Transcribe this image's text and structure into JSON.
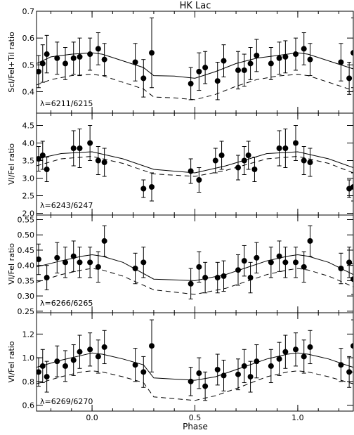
{
  "figure": {
    "title": "HK Lac",
    "xlabel": "Phase"
  },
  "chart_data": [
    {
      "type": "scatter",
      "ylabel": "ScI/FeI+TiI ratio",
      "annotation": "λ=6211/6215",
      "xlim": [
        -0.27,
        1.27
      ],
      "ylim": [
        0.32,
        0.7
      ],
      "yticks": [
        0.4,
        0.5,
        0.6,
        0.7
      ],
      "xticks": [
        0.0,
        0.5,
        1.0
      ],
      "observed": [
        {
          "x": -0.26,
          "y": 0.475,
          "err": 0.06
        },
        {
          "x": -0.24,
          "y": 0.505,
          "err": 0.07
        },
        {
          "x": -0.22,
          "y": 0.54,
          "err": 0.07
        },
        {
          "x": -0.17,
          "y": 0.525,
          "err": 0.06
        },
        {
          "x": -0.13,
          "y": 0.505,
          "err": 0.06
        },
        {
          "x": -0.09,
          "y": 0.525,
          "err": 0.06
        },
        {
          "x": -0.06,
          "y": 0.53,
          "err": 0.07
        },
        {
          "x": -0.01,
          "y": 0.54,
          "err": 0.06
        },
        {
          "x": 0.03,
          "y": 0.56,
          "err": 0.06
        },
        {
          "x": 0.06,
          "y": 0.52,
          "err": 0.06
        },
        {
          "x": 0.21,
          "y": 0.51,
          "err": 0.07
        },
        {
          "x": 0.25,
          "y": 0.45,
          "err": 0.07
        },
        {
          "x": 0.29,
          "y": 0.545,
          "err": 0.13
        },
        {
          "x": 0.48,
          "y": 0.43,
          "err": 0.06
        },
        {
          "x": 0.52,
          "y": 0.475,
          "err": 0.07
        },
        {
          "x": 0.55,
          "y": 0.49,
          "err": 0.06
        },
        {
          "x": 0.61,
          "y": 0.44,
          "err": 0.07
        },
        {
          "x": 0.64,
          "y": 0.515,
          "err": 0.06
        },
        {
          "x": 0.71,
          "y": 0.48,
          "err": 0.07
        },
        {
          "x": 0.74,
          "y": 0.48,
          "err": 0.06
        },
        {
          "x": 0.77,
          "y": 0.505,
          "err": 0.06
        },
        {
          "x": 0.8,
          "y": 0.535,
          "err": 0.06
        },
        {
          "x": 0.87,
          "y": 0.505,
          "err": 0.06
        },
        {
          "x": 0.91,
          "y": 0.525,
          "err": 0.06
        },
        {
          "x": 0.94,
          "y": 0.53,
          "err": 0.06
        },
        {
          "x": 0.99,
          "y": 0.54,
          "err": 0.06
        },
        {
          "x": 1.03,
          "y": 0.56,
          "err": 0.06
        },
        {
          "x": 1.06,
          "y": 0.52,
          "err": 0.06
        },
        {
          "x": 1.21,
          "y": 0.51,
          "err": 0.07
        },
        {
          "x": 1.25,
          "y": 0.45,
          "err": 0.06
        },
        {
          "x": 1.27,
          "y": 0.545,
          "err": 0.13
        }
      ],
      "model_solid": {
        "x": [
          -0.27,
          -0.2,
          -0.1,
          0.0,
          0.05,
          0.15,
          0.25,
          0.3,
          0.4,
          0.5,
          0.6,
          0.7,
          0.8,
          0.9,
          1.0,
          1.05,
          1.15,
          1.25,
          1.27
        ],
        "y": [
          0.505,
          0.53,
          0.54,
          0.545,
          0.54,
          0.515,
          0.49,
          0.46,
          0.458,
          0.45,
          0.475,
          0.505,
          0.525,
          0.535,
          0.545,
          0.54,
          0.515,
          0.49,
          0.485
        ]
      },
      "model_dashed": {
        "x": [
          -0.27,
          -0.2,
          -0.1,
          0.0,
          0.05,
          0.15,
          0.25,
          0.3,
          0.4,
          0.5,
          0.6,
          0.7,
          0.8,
          0.9,
          1.0,
          1.05,
          1.15,
          1.25,
          1.27
        ],
        "y": [
          0.425,
          0.445,
          0.46,
          0.465,
          0.46,
          0.435,
          0.41,
          0.38,
          0.377,
          0.37,
          0.39,
          0.42,
          0.445,
          0.458,
          0.465,
          0.46,
          0.435,
          0.41,
          0.405
        ]
      }
    },
    {
      "type": "scatter",
      "ylabel": "VI/FeI ratio",
      "annotation": "λ=6243/6247",
      "xlim": [
        -0.27,
        1.27
      ],
      "ylim": [
        1.95,
        4.85
      ],
      "yticks": [
        2.0,
        2.5,
        3.0,
        3.5,
        4.0,
        4.5
      ],
      "xticks": [
        0.0,
        0.5,
        1.0
      ],
      "observed": [
        {
          "x": -0.26,
          "y": 3.55,
          "err": 0.35
        },
        {
          "x": -0.24,
          "y": 3.65,
          "err": 0.4
        },
        {
          "x": -0.22,
          "y": 3.25,
          "err": 0.35
        },
        {
          "x": -0.09,
          "y": 3.85,
          "err": 0.5
        },
        {
          "x": -0.06,
          "y": 3.85,
          "err": 0.55
        },
        {
          "x": -0.01,
          "y": 4.0,
          "err": 0.5
        },
        {
          "x": 0.03,
          "y": 3.5,
          "err": 0.4
        },
        {
          "x": 0.06,
          "y": 3.45,
          "err": 0.4
        },
        {
          "x": 0.25,
          "y": 2.7,
          "err": 0.25
        },
        {
          "x": 0.29,
          "y": 2.75,
          "err": 0.4
        },
        {
          "x": 0.48,
          "y": 3.2,
          "err": 0.35
        },
        {
          "x": 0.52,
          "y": 2.95,
          "err": 0.35
        },
        {
          "x": 0.6,
          "y": 3.5,
          "err": 0.35
        },
        {
          "x": 0.63,
          "y": 3.65,
          "err": 0.4
        },
        {
          "x": 0.71,
          "y": 3.3,
          "err": 0.35
        },
        {
          "x": 0.74,
          "y": 3.5,
          "err": 0.4
        },
        {
          "x": 0.76,
          "y": 3.65,
          "err": 0.4
        },
        {
          "x": 0.79,
          "y": 3.25,
          "err": 0.35
        },
        {
          "x": 0.91,
          "y": 3.85,
          "err": 0.5
        },
        {
          "x": 0.94,
          "y": 3.85,
          "err": 0.55
        },
        {
          "x": 0.99,
          "y": 4.0,
          "err": 0.5
        },
        {
          "x": 1.03,
          "y": 3.5,
          "err": 0.4
        },
        {
          "x": 1.06,
          "y": 3.45,
          "err": 0.4
        },
        {
          "x": 1.25,
          "y": 2.7,
          "err": 0.25
        },
        {
          "x": 1.27,
          "y": 2.75,
          "err": 0.4
        }
      ],
      "model_solid": {
        "x": [
          -0.27,
          -0.15,
          0.0,
          0.15,
          0.3,
          0.5,
          0.65,
          0.85,
          1.0,
          1.15,
          1.27
        ],
        "y": [
          3.55,
          3.7,
          3.75,
          3.55,
          3.25,
          3.15,
          3.35,
          3.7,
          3.75,
          3.55,
          3.3
        ]
      },
      "model_dashed": {
        "x": [
          -0.27,
          -0.15,
          0.0,
          0.15,
          0.3,
          0.5,
          0.65,
          0.85,
          1.0,
          1.15,
          1.27
        ],
        "y": [
          3.35,
          3.55,
          3.62,
          3.42,
          3.12,
          3.05,
          3.22,
          3.55,
          3.62,
          3.42,
          3.15
        ]
      }
    },
    {
      "type": "scatter",
      "ylabel": "VI/FeI ratio",
      "annotation": "λ=6266/6265",
      "xlim": [
        -0.27,
        1.27
      ],
      "ylim": [
        0.245,
        0.565
      ],
      "yticks": [
        0.25,
        0.3,
        0.35,
        0.4,
        0.45,
        0.5,
        0.55
      ],
      "xticks": [
        0.0,
        0.5,
        1.0
      ],
      "observed": [
        {
          "x": -0.26,
          "y": 0.42,
          "err": 0.05
        },
        {
          "x": -0.22,
          "y": 0.36,
          "err": 0.04
        },
        {
          "x": -0.17,
          "y": 0.425,
          "err": 0.05
        },
        {
          "x": -0.13,
          "y": 0.41,
          "err": 0.05
        },
        {
          "x": -0.09,
          "y": 0.43,
          "err": 0.05
        },
        {
          "x": -0.06,
          "y": 0.41,
          "err": 0.05
        },
        {
          "x": -0.01,
          "y": 0.41,
          "err": 0.05
        },
        {
          "x": 0.03,
          "y": 0.395,
          "err": 0.05
        },
        {
          "x": 0.06,
          "y": 0.48,
          "err": 0.05
        },
        {
          "x": 0.21,
          "y": 0.39,
          "err": 0.05
        },
        {
          "x": 0.25,
          "y": 0.41,
          "err": 0.05
        },
        {
          "x": 0.48,
          "y": 0.34,
          "err": 0.05
        },
        {
          "x": 0.52,
          "y": 0.395,
          "err": 0.05
        },
        {
          "x": 0.55,
          "y": 0.36,
          "err": 0.05
        },
        {
          "x": 0.61,
          "y": 0.36,
          "err": 0.05
        },
        {
          "x": 0.64,
          "y": 0.365,
          "err": 0.05
        },
        {
          "x": 0.71,
          "y": 0.385,
          "err": 0.05
        },
        {
          "x": 0.74,
          "y": 0.415,
          "err": 0.05
        },
        {
          "x": 0.77,
          "y": 0.36,
          "err": 0.05
        },
        {
          "x": 0.8,
          "y": 0.425,
          "err": 0.05
        },
        {
          "x": 0.87,
          "y": 0.41,
          "err": 0.05
        },
        {
          "x": 0.91,
          "y": 0.43,
          "err": 0.05
        },
        {
          "x": 0.94,
          "y": 0.41,
          "err": 0.05
        },
        {
          "x": 0.99,
          "y": 0.41,
          "err": 0.05
        },
        {
          "x": 1.03,
          "y": 0.395,
          "err": 0.05
        },
        {
          "x": 1.06,
          "y": 0.48,
          "err": 0.05
        },
        {
          "x": 1.21,
          "y": 0.39,
          "err": 0.05
        },
        {
          "x": 1.25,
          "y": 0.41,
          "err": 0.05
        },
        {
          "x": 1.27,
          "y": 0.355,
          "err": 0.05
        }
      ],
      "model_solid": {
        "x": [
          -0.27,
          -0.15,
          -0.05,
          0.0,
          0.05,
          0.15,
          0.3,
          0.5,
          0.65,
          0.85,
          0.95,
          1.0,
          1.05,
          1.15,
          1.27
        ],
        "y": [
          0.395,
          0.415,
          0.43,
          0.435,
          0.43,
          0.41,
          0.355,
          0.35,
          0.37,
          0.415,
          0.43,
          0.435,
          0.43,
          0.41,
          0.37
        ]
      },
      "model_dashed": {
        "x": [
          -0.27,
          -0.15,
          -0.05,
          0.0,
          0.05,
          0.15,
          0.3,
          0.5,
          0.65,
          0.85,
          0.95,
          1.0,
          1.05,
          1.15,
          1.27
        ],
        "y": [
          0.345,
          0.37,
          0.385,
          0.39,
          0.385,
          0.365,
          0.32,
          0.305,
          0.325,
          0.37,
          0.385,
          0.39,
          0.385,
          0.365,
          0.33
        ]
      }
    },
    {
      "type": "scatter",
      "ylabel": "VI/FeI ratio",
      "annotation": "λ=6269/6270",
      "xlim": [
        -0.27,
        1.27
      ],
      "ylim": [
        0.55,
        1.38
      ],
      "yticks": [
        0.6,
        0.8,
        1.0,
        1.2
      ],
      "xticks": [
        0.0,
        0.5,
        1.0
      ],
      "observed": [
        {
          "x": -0.26,
          "y": 0.88,
          "err": 0.12
        },
        {
          "x": -0.24,
          "y": 0.93,
          "err": 0.14
        },
        {
          "x": -0.22,
          "y": 0.84,
          "err": 0.13
        },
        {
          "x": -0.17,
          "y": 0.97,
          "err": 0.13
        },
        {
          "x": -0.13,
          "y": 0.93,
          "err": 0.13
        },
        {
          "x": -0.09,
          "y": 0.98,
          "err": 0.13
        },
        {
          "x": -0.06,
          "y": 1.05,
          "err": 0.14
        },
        {
          "x": -0.01,
          "y": 1.07,
          "err": 0.14
        },
        {
          "x": 0.03,
          "y": 1.01,
          "err": 0.14
        },
        {
          "x": 0.06,
          "y": 1.09,
          "err": 0.14
        },
        {
          "x": 0.21,
          "y": 0.94,
          "err": 0.14
        },
        {
          "x": 0.25,
          "y": 0.88,
          "err": 0.13
        },
        {
          "x": 0.29,
          "y": 1.1,
          "err": 0.22
        },
        {
          "x": 0.48,
          "y": 0.8,
          "err": 0.12
        },
        {
          "x": 0.52,
          "y": 0.87,
          "err": 0.13
        },
        {
          "x": 0.55,
          "y": 0.76,
          "err": 0.12
        },
        {
          "x": 0.61,
          "y": 0.9,
          "err": 0.13
        },
        {
          "x": 0.64,
          "y": 0.85,
          "err": 0.13
        },
        {
          "x": 0.71,
          "y": 0.86,
          "err": 0.13
        },
        {
          "x": 0.74,
          "y": 0.93,
          "err": 0.14
        },
        {
          "x": 0.77,
          "y": 0.84,
          "err": 0.13
        },
        {
          "x": 0.8,
          "y": 0.97,
          "err": 0.14
        },
        {
          "x": 0.87,
          "y": 0.93,
          "err": 0.14
        },
        {
          "x": 0.91,
          "y": 0.99,
          "err": 0.14
        },
        {
          "x": 0.94,
          "y": 1.05,
          "err": 0.14
        },
        {
          "x": 0.99,
          "y": 1.07,
          "err": 0.14
        },
        {
          "x": 1.03,
          "y": 1.01,
          "err": 0.14
        },
        {
          "x": 1.06,
          "y": 1.09,
          "err": 0.14
        },
        {
          "x": 1.21,
          "y": 0.94,
          "err": 0.14
        },
        {
          "x": 1.25,
          "y": 0.88,
          "err": 0.13
        },
        {
          "x": 1.27,
          "y": 1.1,
          "err": 0.22
        }
      ],
      "model_solid": {
        "x": [
          -0.27,
          -0.15,
          -0.05,
          0.0,
          0.05,
          0.15,
          0.25,
          0.3,
          0.5,
          0.6,
          0.7,
          0.85,
          0.95,
          1.0,
          1.05,
          1.15,
          1.25,
          1.27
        ],
        "y": [
          0.92,
          0.98,
          1.02,
          1.04,
          1.03,
          0.99,
          0.94,
          0.83,
          0.81,
          0.84,
          0.9,
          0.99,
          1.03,
          1.04,
          1.03,
          0.99,
          0.93,
          0.92
        ]
      },
      "model_dashed": {
        "x": [
          -0.27,
          -0.15,
          -0.05,
          0.0,
          0.05,
          0.15,
          0.25,
          0.3,
          0.5,
          0.6,
          0.7,
          0.85,
          0.95,
          1.0,
          1.05,
          1.15,
          1.25,
          1.27
        ],
        "y": [
          0.78,
          0.84,
          0.88,
          0.89,
          0.88,
          0.84,
          0.79,
          0.67,
          0.64,
          0.68,
          0.74,
          0.84,
          0.88,
          0.89,
          0.88,
          0.84,
          0.79,
          0.78
        ]
      }
    }
  ]
}
